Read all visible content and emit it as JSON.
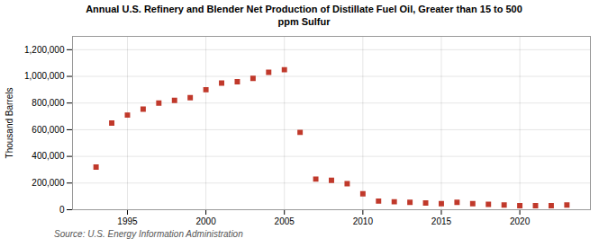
{
  "chart_data": {
    "type": "scatter",
    "title": "Annual U.S. Refinery and Blender Net Production of Distillate Fuel Oil, Greater than 15 to 500\nppm Sulfur",
    "ylabel": "Thousand Barrels",
    "source": "Source: U.S. Energy Information Administration",
    "x": [
      1993,
      1994,
      1995,
      1996,
      1997,
      1998,
      1999,
      2000,
      2001,
      2002,
      2003,
      2004,
      2005,
      2006,
      2007,
      2008,
      2009,
      2010,
      2011,
      2012,
      2013,
      2014,
      2015,
      2016,
      2017,
      2018,
      2019,
      2020,
      2021,
      2022,
      2023
    ],
    "values": [
      320000,
      650000,
      710000,
      755000,
      800000,
      820000,
      840000,
      900000,
      950000,
      960000,
      985000,
      1030000,
      1050000,
      580000,
      230000,
      220000,
      195000,
      120000,
      65000,
      60000,
      55000,
      50000,
      45000,
      55000,
      45000,
      40000,
      35000,
      30000,
      30000,
      30000,
      35000
    ],
    "color": "#c0392b",
    "marker": "square",
    "xlim": [
      1991.5,
      2024.5
    ],
    "xticks": [
      1995,
      2000,
      2005,
      2010,
      2015,
      2020
    ],
    "ylim": [
      0,
      1300000
    ],
    "yticks": [
      0,
      {
        "value": 200000,
        "label": "200,000"
      },
      {
        "value": 400000,
        "label": "400,000"
      },
      {
        "value": 600000,
        "label": "600,000"
      },
      {
        "value": 800000,
        "label": "800,000"
      },
      {
        "value": 1000000,
        "label": "1,000,000"
      },
      {
        "value": 1200000,
        "label": "1,200,000"
      }
    ],
    "grid": true
  }
}
